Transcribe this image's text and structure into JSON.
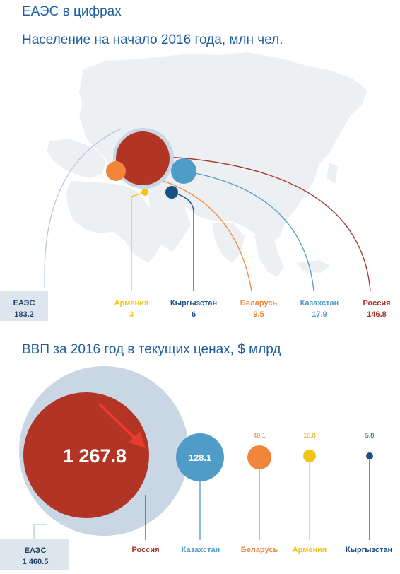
{
  "page_title": "ЕАЭС в цифрах",
  "colors": {
    "title": "#1f5f9e",
    "eaes_circle": "#c9d6e3",
    "russia": "#b23424",
    "kazakhstan": "#4f9cc9",
    "belarus": "#f1863b",
    "armenia": "#f2c416",
    "kyrgyzstan": "#1a4f86",
    "eaes_label_bg": "#dde6ee",
    "eaes_label_text": "#1f3f66",
    "map": "#edf0f3",
    "arrow": "#e63b2e"
  },
  "icons": [
    "map-of-eurasia",
    "down-right-arrow"
  ],
  "chart_data": [
    {
      "type": "bubble",
      "title": "Население на начало 2016 года, млн чел.",
      "total": {
        "label": "ЕАЭС",
        "value_text": "183.2",
        "value": 183.2
      },
      "series": [
        {
          "name": "Армения",
          "value_text": "3",
          "value": 3
        },
        {
          "name": "Кыргызстан",
          "value_text": "6",
          "value": 6
        },
        {
          "name": "Беларусь",
          "value_text": "9.5",
          "value": 9.5
        },
        {
          "name": "Казахстан",
          "value_text": "17.9",
          "value": 17.9
        },
        {
          "name": "Россия",
          "value_text": "146.8",
          "value": 146.8
        }
      ]
    },
    {
      "type": "bubble",
      "title": "ВВП за 2016 год в текущих ценах, $ млрд",
      "total": {
        "label": "ЕАЭС",
        "value_text": "1 460.5",
        "value": 1460.5
      },
      "series": [
        {
          "name": "Россия",
          "value_text": "1 267.8",
          "value": 1267.8
        },
        {
          "name": "Казахстан",
          "value_text": "128.1",
          "value": 128.1
        },
        {
          "name": "Беларусь",
          "value_text": "48.1",
          "value": 48.1
        },
        {
          "name": "Армения",
          "value_text": "10.8",
          "value": 10.8
        },
        {
          "name": "Кыргызстан",
          "value_text": "5.8",
          "value": 5.8
        }
      ]
    }
  ]
}
